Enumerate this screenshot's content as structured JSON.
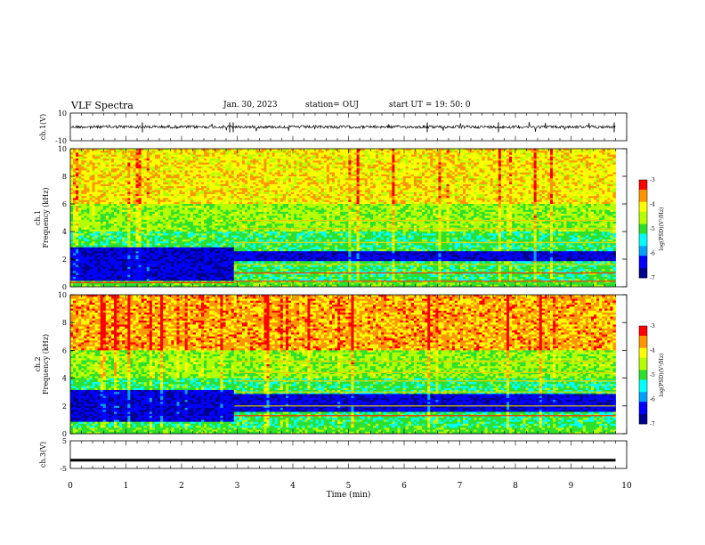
{
  "header": {
    "title": "VLF Spectra",
    "date": "Jan. 30, 2023",
    "station": "station= OUJ",
    "start_ut": "start  UT =   19: 50: 0"
  },
  "chart_data": [
    {
      "type": "line",
      "name": "ch1-waveform",
      "ylabel": "ch.1(V)",
      "ytick_labels": [
        "10",
        "-10"
      ],
      "ylim": [
        -10,
        10
      ],
      "baseline_value": 0
    },
    {
      "type": "heatmap",
      "name": "ch1-spectrogram",
      "ylabel": "Frequency (kHz)",
      "ylabel_prefix": "ch.1",
      "ylim": [
        0,
        10
      ],
      "yticks": [
        "0",
        "2",
        "4",
        "6",
        "8",
        "10"
      ],
      "colorbar": {
        "label": "log(PSD)(V²/Hz)",
        "ticks": [
          "-3",
          "-4",
          "-5",
          "-6",
          "-7"
        ],
        "range": [
          -7,
          -3
        ]
      },
      "regimes": [
        {
          "time_range_min": [
            0,
            2.95
          ],
          "dark_band_khz": [
            0.4,
            2.8
          ],
          "low_line_khz": [
            0.3
          ]
        },
        {
          "time_range_min": [
            2.95,
            9.8
          ],
          "dark_band_khz": [
            1.8,
            2.6
          ],
          "lines_khz": [
            0.4,
            1.0,
            1.6,
            3.2,
            4.2,
            4.8
          ]
        }
      ]
    },
    {
      "type": "heatmap",
      "name": "ch2-spectrogram",
      "ylabel": "Frequency (kHz)",
      "ylabel_prefix": "ch.2",
      "ylim": [
        0,
        10
      ],
      "yticks": [
        "0",
        "2",
        "4",
        "6",
        "8",
        "10"
      ],
      "colorbar": {
        "label": "log(PSD)(V²/Hz)",
        "ticks": [
          "-3",
          "-4",
          "-5",
          "-6",
          "-7"
        ],
        "range": [
          -7,
          -3
        ]
      },
      "regimes": [
        {
          "time_range_min": [
            0,
            2.95
          ],
          "dark_band_khz": [
            0.8,
            3.2
          ]
        },
        {
          "time_range_min": [
            2.95,
            9.8
          ],
          "dark_band_khz": [
            1.6,
            2.8
          ],
          "lines_khz": [
            1.3,
            2.0,
            3.0,
            3.8,
            4.4,
            5.2
          ]
        }
      ]
    },
    {
      "type": "line",
      "name": "ch3-waveform",
      "ylabel": "ch.3(V)",
      "ytick_labels": [
        "5",
        "-5"
      ],
      "ylim": [
        -5,
        5
      ],
      "constant_value": -2.0
    }
  ],
  "x_axis": {
    "label": "Time (min)",
    "ticks": [
      "0",
      "1",
      "2",
      "3",
      "4",
      "5",
      "6",
      "7",
      "8",
      "9",
      "10"
    ],
    "range": [
      0,
      10
    ],
    "data_end": 9.8
  },
  "colors": {
    "colormap": [
      "#00008c",
      "#0000ff",
      "#00a0ff",
      "#00ffff",
      "#2ee02e",
      "#b4ff00",
      "#ffff00",
      "#ff9600",
      "#ff0000",
      "#ffffff"
    ],
    "axes": "#000000",
    "background": "#ffffff"
  }
}
